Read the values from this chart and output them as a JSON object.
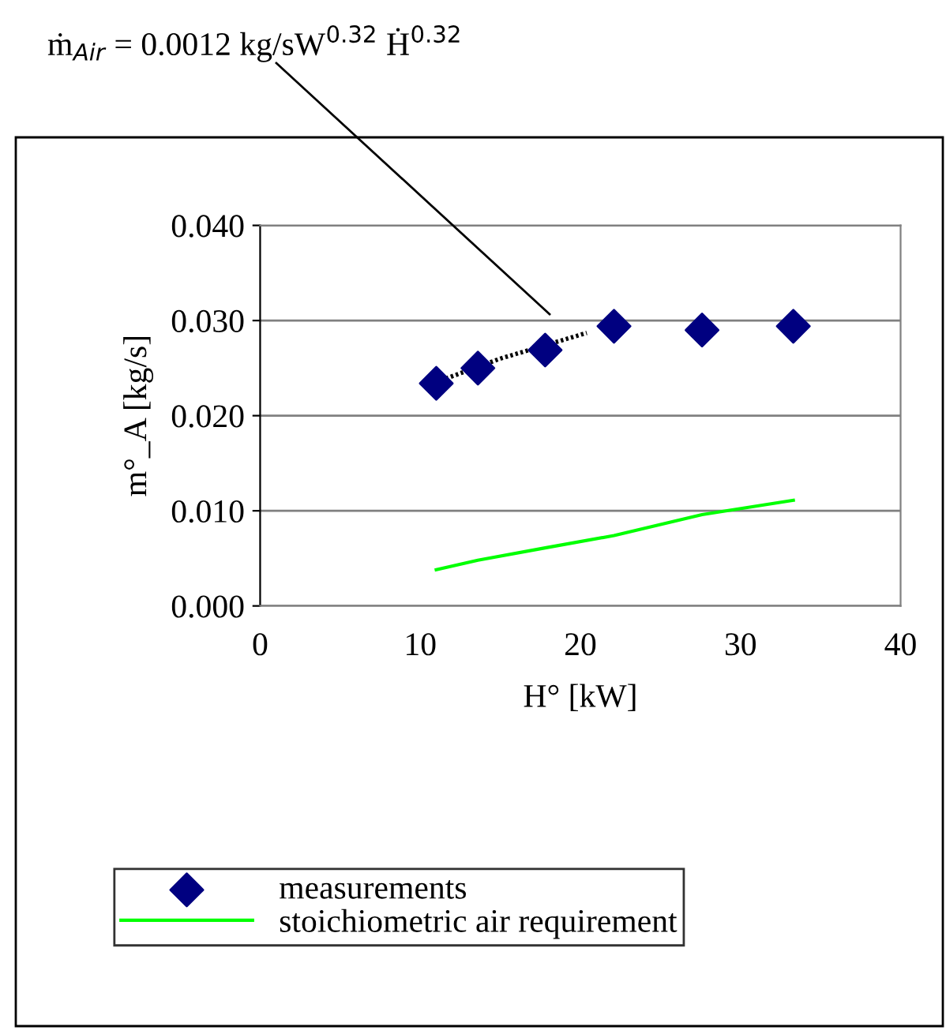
{
  "chart_data": {
    "type": "scatter",
    "xlabel": "H° [kW]",
    "ylabel": "m°_A [kg/s]",
    "annotations": [
      "ṁ$_{Air}$ = 0.0012 kg/sW$^{0.32}$ Ḣ$^{0.32}$"
    ],
    "series": [
      {
        "name": "measurements",
        "color": "#000080",
        "marker": "diamond",
        "x": [
          11.0,
          13.6,
          17.8,
          22.1,
          27.6,
          33.3
        ],
        "values": [
          0.0234,
          0.025,
          0.0269,
          0.0294,
          0.029,
          0.0294
        ]
      },
      {
        "name": "stoichiometric air requirement",
        "type": "line",
        "color": "#00ff00",
        "marker": "none",
        "line_style": "solid",
        "x": [
          11.0,
          13.6,
          17.8,
          22.1,
          27.6,
          33.3
        ],
        "values": [
          0.0038,
          0.0048,
          0.0061,
          0.0074,
          0.0096,
          0.0111
        ]
      },
      {
        "type": "line",
        "color": "#000000",
        "marker": "none",
        "line_style": "dotted",
        "x": [
          11.6,
          15.0,
          20.4
        ],
        "values": [
          0.0239,
          0.026,
          0.0287
        ]
      }
    ],
    "xlim": [
      0,
      40
    ],
    "xticks": [
      0,
      10,
      20,
      30,
      40
    ],
    "ylim": [
      0,
      0.04
    ],
    "yticks": [
      {
        "value": 0,
        "label": "0.000"
      },
      {
        "value": 0.01,
        "label": "0.010"
      },
      {
        "value": 0.02,
        "label": "0.020"
      },
      {
        "value": 0.03,
        "label": "0.030"
      },
      {
        "value": 0.04,
        "label": "0.040"
      }
    ],
    "grid": "y",
    "legend": "bottom"
  }
}
